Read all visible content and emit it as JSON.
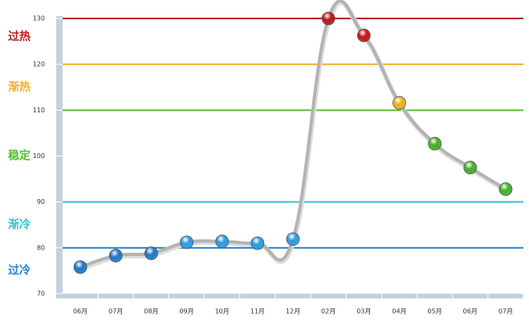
{
  "chart_data": {
    "type": "line",
    "categories": [
      "06月",
      "07月",
      "08月",
      "09月",
      "10月",
      "11月",
      "12月",
      "02月",
      "03月",
      "04月",
      "05月",
      "06月",
      "07月"
    ],
    "series": [
      {
        "values": [
          75.8,
          78.3,
          78.8,
          81.2,
          81.4,
          81.0,
          81.9,
          130,
          126.3,
          111.6,
          102.7,
          97.5,
          92.8
        ],
        "color": "#b3b3b3",
        "point_colors": [
          "#1f78c8",
          "#1f78c8",
          "#1f78c8",
          "#2a9be0",
          "#2a9be0",
          "#2a9be0",
          "#2a9be0",
          "#c0161b",
          "#c0161b",
          "#e8b21c",
          "#43b02a",
          "#43b02a",
          "#43b02a"
        ]
      }
    ],
    "ylim": [
      70,
      130
    ],
    "yticks": [
      70,
      80,
      90,
      100,
      110,
      120,
      130
    ],
    "zones": [
      {
        "label": "过热",
        "line": 130,
        "label_at": 126,
        "color": "#b8201c"
      },
      {
        "label": "渐热",
        "line": 120,
        "label_at": 115,
        "color": "#f0b030"
      },
      {
        "label": "稳定",
        "line": 110,
        "label_at": 100,
        "color": "#55c02a"
      },
      {
        "label": "渐冷",
        "line": 90,
        "label_at": 85,
        "color": "#2ec4d0"
      },
      {
        "label": "过冷",
        "line": 80,
        "label_at": 75,
        "color": "#2a82d0"
      }
    ]
  }
}
